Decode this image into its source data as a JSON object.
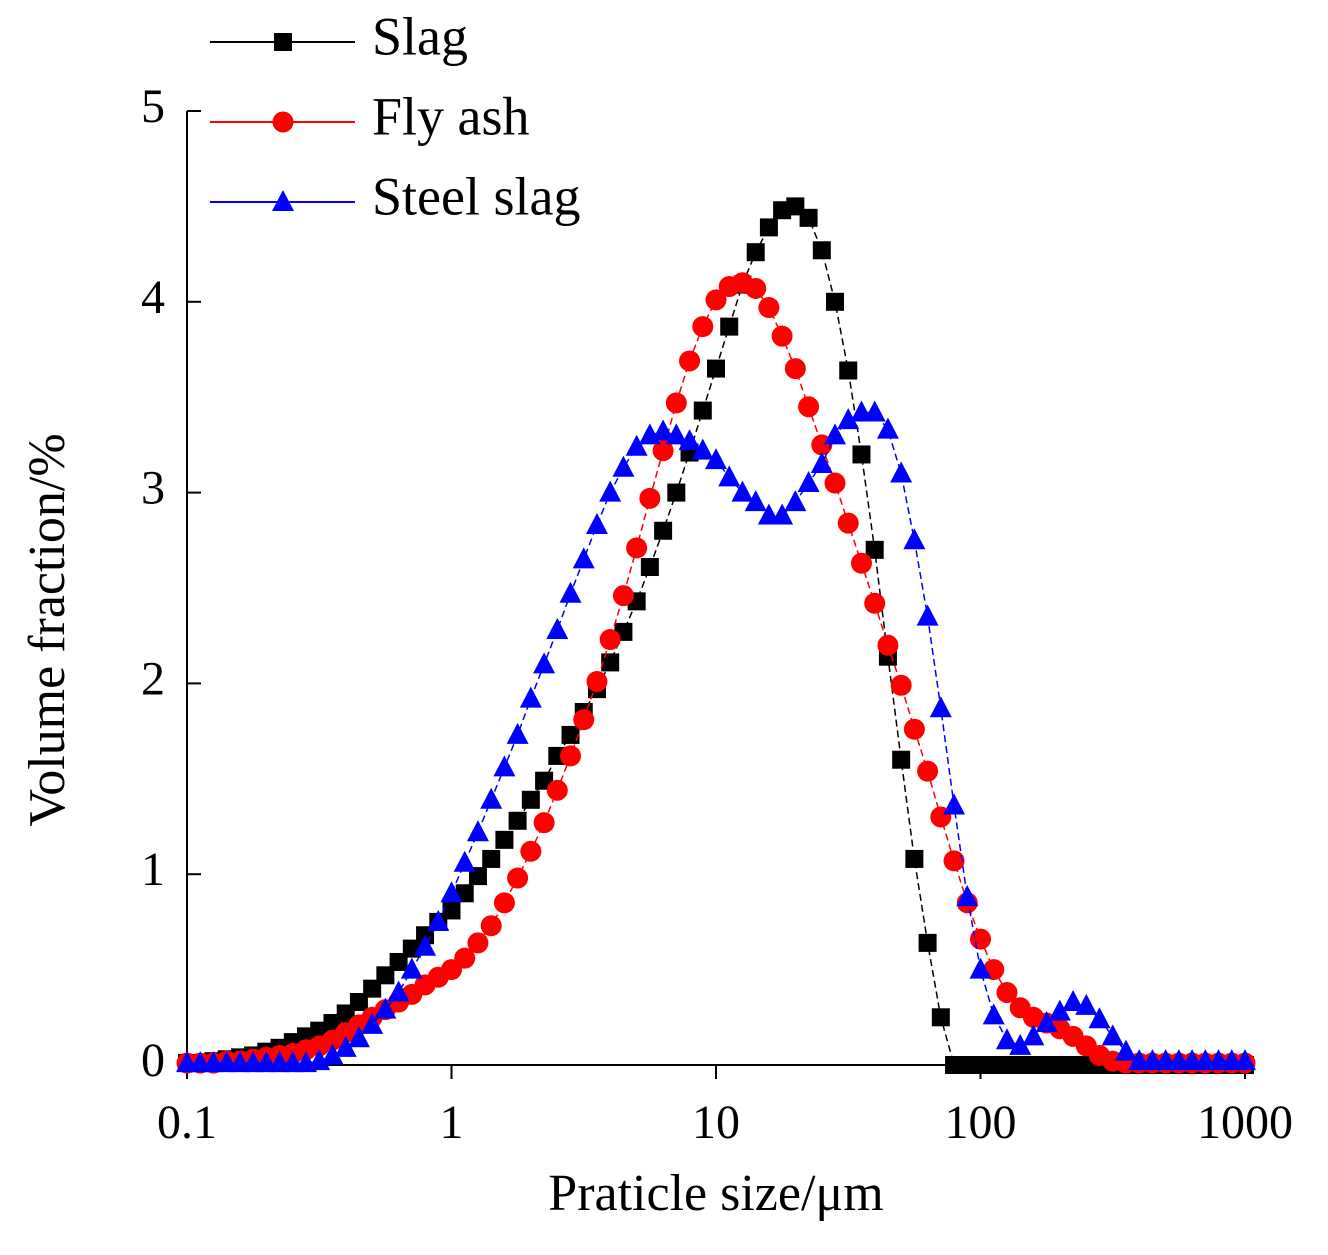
{
  "chart_data": {
    "type": "line",
    "xlabel": "Praticle size/μm",
    "ylabel": "Volume fraction/%",
    "xscale": "log",
    "xlim": [
      0.1,
      1000
    ],
    "xticks": [
      0.1,
      1,
      10,
      100,
      1000
    ],
    "ylim": [
      0,
      5
    ],
    "yticks": [
      0,
      1,
      2,
      3,
      4,
      5
    ],
    "legend": "top-left",
    "x": [
      0.1,
      0.1122,
      0.1259,
      0.1413,
      0.1585,
      0.1778,
      0.1995,
      0.2239,
      0.2512,
      0.2818,
      0.3162,
      0.3548,
      0.3981,
      0.4467,
      0.5012,
      0.5623,
      0.631,
      0.7079,
      0.7943,
      0.8913,
      1,
      1.122,
      1.259,
      1.413,
      1.585,
      1.778,
      1.995,
      2.239,
      2.512,
      2.818,
      3.162,
      3.548,
      3.981,
      4.467,
      5.012,
      5.623,
      6.31,
      7.079,
      7.943,
      8.913,
      10,
      11.22,
      12.59,
      14.13,
      15.85,
      17.78,
      19.95,
      22.39,
      25.12,
      28.18,
      31.62,
      35.48,
      39.81,
      44.67,
      50.12,
      56.23,
      63.1,
      70.79,
      79.43,
      89.13,
      100,
      112.2,
      125.9,
      141.3,
      158.5,
      177.8,
      199.5,
      223.9,
      251.2,
      281.8,
      316.2,
      354.8,
      398.1,
      446.7,
      501.2,
      562.3,
      631,
      707.9,
      794.3,
      891.3,
      1000
    ],
    "series": [
      {
        "name": "Slag",
        "color": "#000000",
        "marker": "square",
        "values": [
          0.01,
          0.01,
          0.02,
          0.03,
          0.04,
          0.05,
          0.07,
          0.09,
          0.12,
          0.15,
          0.18,
          0.22,
          0.27,
          0.33,
          0.4,
          0.47,
          0.54,
          0.61,
          0.68,
          0.75,
          0.81,
          0.9,
          0.99,
          1.08,
          1.18,
          1.28,
          1.39,
          1.49,
          1.62,
          1.73,
          1.85,
          1.97,
          2.11,
          2.27,
          2.43,
          2.61,
          2.8,
          3.0,
          3.21,
          3.43,
          3.65,
          3.87,
          4.09,
          4.26,
          4.39,
          4.48,
          4.5,
          4.44,
          4.27,
          4.0,
          3.64,
          3.2,
          2.7,
          2.14,
          1.6,
          1.08,
          0.64,
          0.25,
          0,
          0,
          0,
          0,
          0,
          0,
          0,
          0,
          0,
          0,
          0,
          0,
          0,
          0,
          0,
          0,
          0,
          0,
          0,
          0,
          0,
          0,
          0
        ]
      },
      {
        "name": "Fly ash",
        "color": "#ff0000",
        "marker": "circle",
        "values": [
          0.01,
          0.01,
          0.01,
          0.02,
          0.02,
          0.03,
          0.04,
          0.05,
          0.06,
          0.08,
          0.1,
          0.13,
          0.17,
          0.21,
          0.25,
          0.29,
          0.33,
          0.37,
          0.42,
          0.46,
          0.5,
          0.56,
          0.64,
          0.73,
          0.85,
          0.98,
          1.12,
          1.27,
          1.44,
          1.62,
          1.81,
          2.01,
          2.23,
          2.46,
          2.71,
          2.97,
          3.22,
          3.47,
          3.69,
          3.87,
          4.01,
          4.08,
          4.1,
          4.07,
          3.97,
          3.82,
          3.65,
          3.45,
          3.25,
          3.05,
          2.84,
          2.63,
          2.42,
          2.2,
          1.99,
          1.76,
          1.54,
          1.3,
          1.07,
          0.85,
          0.66,
          0.5,
          0.38,
          0.3,
          0.25,
          0.22,
          0.19,
          0.15,
          0.1,
          0.05,
          0.02,
          0.01,
          0.01,
          0.01,
          0.01,
          0.01,
          0.01,
          0.01,
          0.01,
          0.01,
          0.01
        ]
      },
      {
        "name": "Steel slag",
        "color": "#0000ff",
        "marker": "triangle",
        "values": [
          0.01,
          0.01,
          0.01,
          0.01,
          0.01,
          0.01,
          0.01,
          0.01,
          0.01,
          0.01,
          0.02,
          0.05,
          0.09,
          0.14,
          0.21,
          0.29,
          0.38,
          0.5,
          0.62,
          0.75,
          0.9,
          1.06,
          1.22,
          1.39,
          1.56,
          1.73,
          1.92,
          2.1,
          2.28,
          2.47,
          2.65,
          2.83,
          3.0,
          3.13,
          3.24,
          3.3,
          3.32,
          3.3,
          3.27,
          3.22,
          3.17,
          3.08,
          3.0,
          2.95,
          2.88,
          2.88,
          2.95,
          3.05,
          3.15,
          3.3,
          3.38,
          3.42,
          3.42,
          3.33,
          3.1,
          2.75,
          2.35,
          1.87,
          1.36,
          0.88,
          0.5,
          0.26,
          0.13,
          0.1,
          0.15,
          0.22,
          0.28,
          0.33,
          0.31,
          0.24,
          0.15,
          0.07,
          0.02,
          0.02,
          0.02,
          0.02,
          0.02,
          0.02,
          0.02,
          0.02,
          0.02
        ]
      }
    ]
  }
}
